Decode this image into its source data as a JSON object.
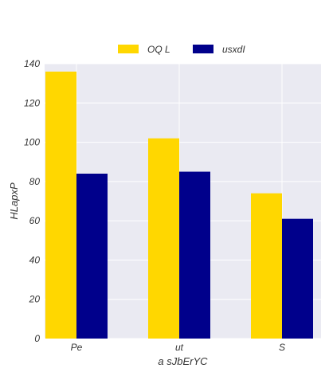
{
  "chart_data": {
    "type": "bar",
    "categories": [
      "Pe",
      "ut",
      "S"
    ],
    "series": [
      {
        "name": "OQ L",
        "values": [
          136,
          102,
          74
        ],
        "color": "#ffd700"
      },
      {
        "name": "usxdI",
        "values": [
          84,
          85,
          61
        ],
        "color": "#00008b"
      }
    ],
    "title": "",
    "xlabel": "a sJbErYC",
    "ylabel": "HLapxP",
    "ylim": [
      0,
      140
    ],
    "yticks": [
      0,
      20,
      40,
      60,
      80,
      100,
      120,
      140
    ],
    "grid": true,
    "legend_position": "top-center",
    "background_color": "#eaeaf2"
  }
}
